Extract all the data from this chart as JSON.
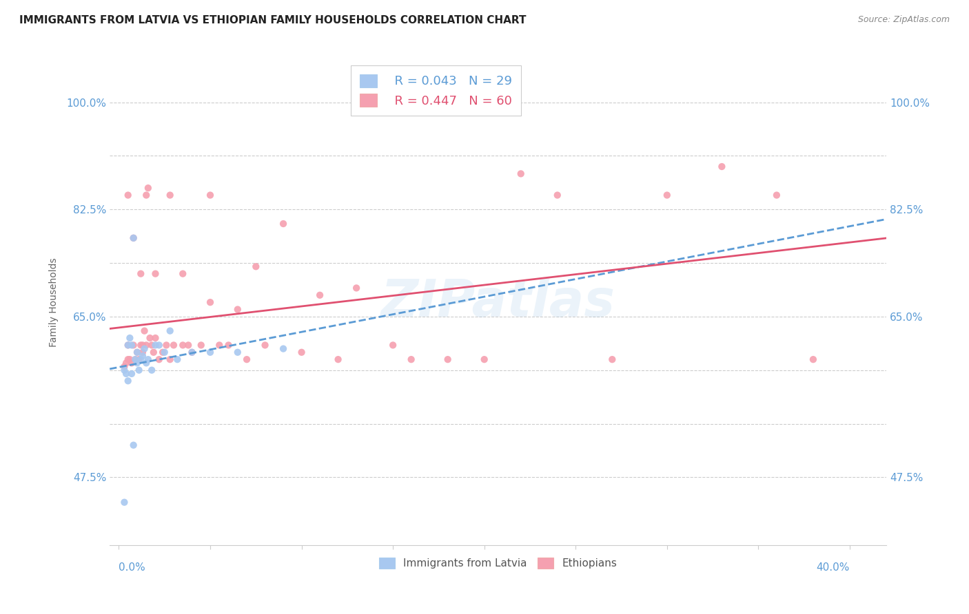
{
  "title": "IMMIGRANTS FROM LATVIA VS ETHIOPIAN FAMILY HOUSEHOLDS CORRELATION CHART",
  "source": "Source: ZipAtlas.com",
  "ylabel": "Family Households",
  "watermark": "ZIPatlas",
  "legend_r1": "R = 0.043",
  "legend_n1": "N = 29",
  "legend_r2": "R = 0.447",
  "legend_n2": "N = 60",
  "latvia_color": "#a8c8f0",
  "ethiopia_color": "#f5a0b0",
  "latvia_line_color": "#5b9bd5",
  "ethiopia_line_color": "#e05070",
  "xmin": -0.005,
  "xmax": 0.42,
  "ymin": 0.38,
  "ymax": 1.06,
  "ytick_vals": [
    0.475,
    0.55,
    0.625,
    0.7,
    0.775,
    0.85,
    0.925,
    1.0
  ],
  "ytick_labels_left": [
    "47.5%",
    "",
    "",
    "65.0%",
    "",
    "82.5%",
    "",
    "100.0%"
  ],
  "ytick_labels_right": [
    "47.5%",
    "",
    "",
    "65.0%",
    "",
    "82.5%",
    "",
    "100.0%"
  ],
  "latvia_scatter_x": [
    0.003,
    0.004,
    0.005,
    0.005,
    0.006,
    0.007,
    0.007,
    0.008,
    0.009,
    0.01,
    0.01,
    0.011,
    0.012,
    0.013,
    0.014,
    0.015,
    0.016,
    0.018,
    0.02,
    0.022,
    0.025,
    0.028,
    0.032,
    0.04,
    0.05,
    0.065,
    0.09,
    0.003,
    0.008
  ],
  "latvia_scatter_y": [
    0.625,
    0.62,
    0.61,
    0.66,
    0.67,
    0.62,
    0.66,
    0.81,
    0.64,
    0.635,
    0.65,
    0.625,
    0.64,
    0.645,
    0.655,
    0.635,
    0.64,
    0.625,
    0.66,
    0.66,
    0.65,
    0.68,
    0.64,
    0.65,
    0.65,
    0.65,
    0.655,
    0.44,
    0.52
  ],
  "ethiopia_scatter_x": [
    0.003,
    0.004,
    0.005,
    0.005,
    0.006,
    0.007,
    0.008,
    0.009,
    0.01,
    0.011,
    0.012,
    0.013,
    0.013,
    0.014,
    0.015,
    0.016,
    0.017,
    0.018,
    0.019,
    0.02,
    0.022,
    0.024,
    0.026,
    0.028,
    0.03,
    0.035,
    0.038,
    0.04,
    0.045,
    0.05,
    0.055,
    0.06,
    0.065,
    0.07,
    0.075,
    0.08,
    0.09,
    0.1,
    0.11,
    0.12,
    0.13,
    0.15,
    0.16,
    0.18,
    0.2,
    0.22,
    0.24,
    0.27,
    0.3,
    0.33,
    0.36,
    0.38,
    0.005,
    0.008,
    0.012,
    0.015,
    0.02,
    0.028,
    0.035,
    0.05
  ],
  "ethiopia_scatter_y": [
    0.63,
    0.635,
    0.64,
    0.66,
    0.64,
    0.635,
    0.66,
    0.64,
    0.65,
    0.64,
    0.66,
    0.66,
    0.65,
    0.68,
    0.66,
    0.88,
    0.67,
    0.66,
    0.65,
    0.67,
    0.64,
    0.65,
    0.66,
    0.64,
    0.66,
    0.66,
    0.66,
    0.65,
    0.66,
    0.72,
    0.66,
    0.66,
    0.71,
    0.64,
    0.77,
    0.66,
    0.83,
    0.65,
    0.73,
    0.64,
    0.74,
    0.66,
    0.64,
    0.64,
    0.64,
    0.9,
    0.87,
    0.64,
    0.87,
    0.91,
    0.87,
    0.64,
    0.87,
    0.81,
    0.76,
    0.87,
    0.76,
    0.87,
    0.76,
    0.87
  ],
  "title_fontsize": 11,
  "source_fontsize": 9,
  "axis_label_fontsize": 10,
  "tick_fontsize": 11,
  "legend_fontsize": 13,
  "background_color": "#ffffff",
  "grid_color": "#cccccc",
  "tick_color": "#5b9bd5"
}
